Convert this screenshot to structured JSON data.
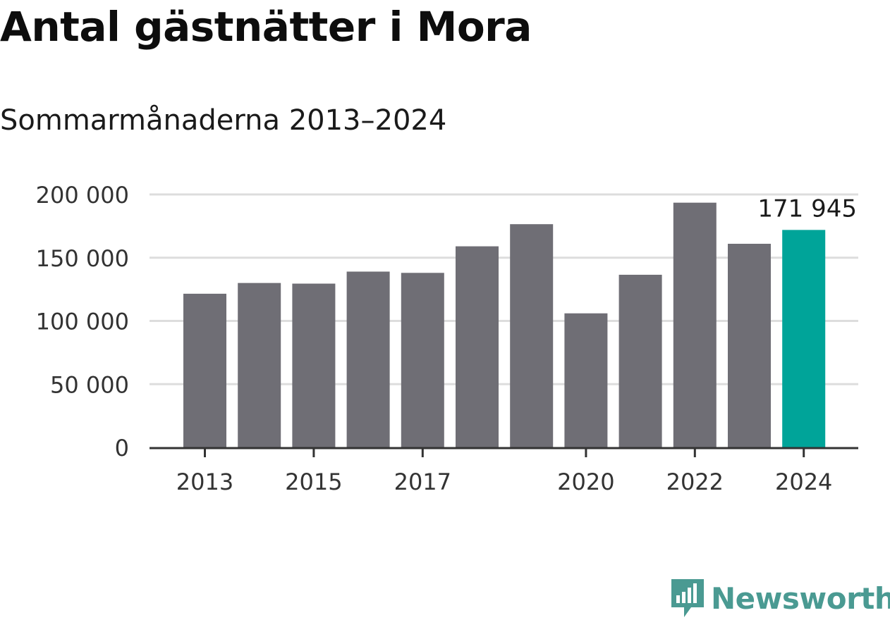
{
  "title": "Antal gästnätter i Mora",
  "subtitle": "Sommarmånaderna 2013–2024",
  "brand": {
    "name": "Newsworthy",
    "color": "#4a9a92",
    "icon": "bar-chart-speech-bubble-icon"
  },
  "colors": {
    "bar": "#6f6e75",
    "highlight": "#00a499",
    "grid": "#dddddd",
    "axis": "#333333"
  },
  "chart_data": {
    "type": "bar",
    "categories": [
      "2013",
      "2014",
      "2015",
      "2016",
      "2017",
      "2018",
      "2019",
      "2020",
      "2021",
      "2022",
      "2023",
      "2024"
    ],
    "values": [
      121500,
      130000,
      129500,
      139000,
      138000,
      159000,
      176500,
      106000,
      136500,
      193500,
      161000,
      171945
    ],
    "x_tick_labels": [
      "2013",
      "2015",
      "2017",
      "2020",
      "2022",
      "2024"
    ],
    "y_ticks": [
      0,
      50000,
      100000,
      150000,
      200000
    ],
    "y_tick_labels": [
      "0",
      "50 000",
      "100 000",
      "150 000",
      "200 000"
    ],
    "ylim": [
      0,
      200000
    ],
    "highlight": {
      "category": "2024",
      "label": "171 945"
    },
    "grid": true,
    "xlabel": "",
    "ylabel": ""
  }
}
